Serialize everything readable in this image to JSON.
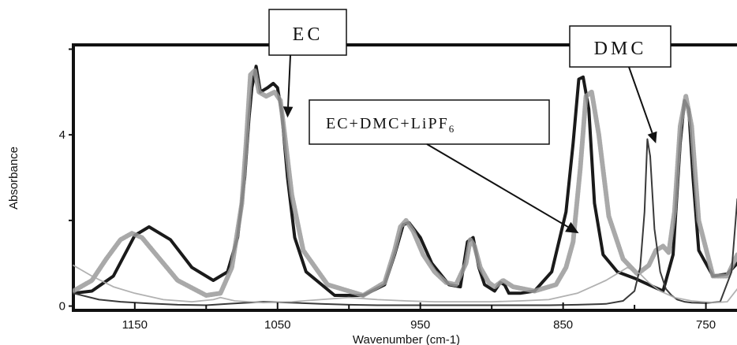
{
  "chart_data": {
    "type": "line",
    "xlabel": "Wavenumber (cm-1)",
    "ylabel": "Absorbance",
    "xlim": [
      1193,
      726
    ],
    "ylim": [
      -0.1,
      6.1
    ],
    "x_ticks": [
      {
        "value": 1150,
        "label": "1150"
      },
      {
        "value": 1050,
        "label": "1050"
      },
      {
        "value": 950,
        "label": "950"
      },
      {
        "value": 850,
        "label": "850"
      },
      {
        "value": 750,
        "label": "750"
      }
    ],
    "x_minor_ticks": [
      1100,
      1000,
      900,
      800
    ],
    "y_ticks": [
      {
        "value": 0,
        "label": "0"
      },
      {
        "value": 2,
        "label": ""
      },
      {
        "value": 4,
        "label": "4"
      },
      {
        "value": 6,
        "label": ""
      }
    ],
    "annotations": {
      "ec": {
        "text": "EC",
        "target_x": 1043,
        "target_y": 4.4
      },
      "dmc": {
        "text": "DMC",
        "target_x": 785,
        "target_y": 3.8
      },
      "mix": {
        "text_main": "EC+DMC+LiPF",
        "text_sub": "6",
        "target_x": 839,
        "target_y": 1.7
      }
    },
    "series": [
      {
        "style": "thick-dark",
        "color": "#1a1a1a",
        "x": [
          1193,
          1180,
          1165,
          1150,
          1140,
          1125,
          1110,
          1095,
          1085,
          1078,
          1073,
          1070,
          1068,
          1065,
          1062,
          1057,
          1053,
          1050,
          1047,
          1043,
          1038,
          1030,
          1010,
          990,
          975,
          968,
          962,
          958,
          950,
          942,
          930,
          922,
          917,
          913,
          909,
          905,
          898,
          894,
          891,
          888,
          880,
          870,
          858,
          848,
          843,
          839,
          836,
          832,
          828,
          822,
          812,
          800,
          790,
          780,
          773,
          768,
          765,
          762,
          759,
          755,
          745,
          735,
          728,
          726
        ],
        "y": [
          0.3,
          0.35,
          0.7,
          1.65,
          1.85,
          1.55,
          0.9,
          0.6,
          0.8,
          1.6,
          3.0,
          4.4,
          5.1,
          5.6,
          5.0,
          5.1,
          5.2,
          5.1,
          4.5,
          3.0,
          1.6,
          0.8,
          0.25,
          0.25,
          0.5,
          1.2,
          1.9,
          1.95,
          1.6,
          1.0,
          0.5,
          0.45,
          1.5,
          1.6,
          0.9,
          0.5,
          0.35,
          0.55,
          0.5,
          0.3,
          0.3,
          0.35,
          0.8,
          2.2,
          3.8,
          5.3,
          5.35,
          4.6,
          2.4,
          1.2,
          0.8,
          0.65,
          0.5,
          0.35,
          1.2,
          3.8,
          4.8,
          4.6,
          3.0,
          1.3,
          0.7,
          0.75,
          1.0,
          0.9
        ]
      },
      {
        "style": "thick-gray",
        "color": "#9a9a9a",
        "x": [
          1193,
          1180,
          1170,
          1160,
          1152,
          1145,
          1135,
          1120,
          1100,
          1090,
          1082,
          1075,
          1072,
          1069,
          1066,
          1063,
          1058,
          1052,
          1048,
          1045,
          1040,
          1032,
          1015,
          990,
          975,
          968,
          964,
          960,
          955,
          948,
          940,
          932,
          925,
          918,
          915,
          912,
          908,
          902,
          898,
          892,
          885,
          870,
          855,
          848,
          843,
          838,
          834,
          830,
          825,
          818,
          808,
          798,
          790,
          785,
          780,
          776,
          772,
          768,
          764,
          760,
          755,
          745,
          735,
          728,
          726
        ],
        "y": [
          0.35,
          0.6,
          1.1,
          1.55,
          1.7,
          1.6,
          1.2,
          0.6,
          0.25,
          0.3,
          0.9,
          2.4,
          3.8,
          5.4,
          5.5,
          5.0,
          4.9,
          5.0,
          4.8,
          4.0,
          2.6,
          1.3,
          0.5,
          0.25,
          0.55,
          1.3,
          1.85,
          2.0,
          1.75,
          1.2,
          0.8,
          0.55,
          0.5,
          1.0,
          1.55,
          1.4,
          0.9,
          0.55,
          0.45,
          0.6,
          0.45,
          0.35,
          0.5,
          0.9,
          1.5,
          3.2,
          4.9,
          5.0,
          4.0,
          2.1,
          1.1,
          0.75,
          0.95,
          1.3,
          1.4,
          1.25,
          2.2,
          4.2,
          4.9,
          4.2,
          2.0,
          0.7,
          0.7,
          1.2,
          1.0
        ]
      },
      {
        "style": "thin-dark",
        "color": "#3a3a3a",
        "x": [
          1193,
          1175,
          1160,
          1140,
          1120,
          1100,
          1085,
          1060,
          1040,
          1020,
          1000,
          980,
          960,
          940,
          920,
          900,
          880,
          860,
          840,
          820,
          808,
          800,
          796,
          793,
          791,
          789,
          786,
          782,
          778,
          774,
          770,
          765,
          760,
          750,
          740,
          732,
          728,
          726
        ],
        "y": [
          0.3,
          0.15,
          0.1,
          0.06,
          0.03,
          0.02,
          0.05,
          0.1,
          0.08,
          0.05,
          0.03,
          0.02,
          0.02,
          0.02,
          0.02,
          0.02,
          0.02,
          0.02,
          0.03,
          0.05,
          0.12,
          0.35,
          0.9,
          2.2,
          3.9,
          3.5,
          1.8,
          0.8,
          0.4,
          0.25,
          0.15,
          0.1,
          0.08,
          0.07,
          0.1,
          0.8,
          2.5,
          2.6
        ]
      },
      {
        "style": "thin-gray",
        "color": "#a8a8a8",
        "x": [
          1193,
          1180,
          1165,
          1150,
          1130,
          1110,
          1095,
          1090,
          1080,
          1060,
          1040,
          1020,
          1000,
          980,
          960,
          940,
          920,
          900,
          880,
          860,
          840,
          820,
          805,
          796,
          790,
          782,
          772,
          760,
          745,
          735,
          728,
          726
        ],
        "y": [
          0.95,
          0.7,
          0.45,
          0.3,
          0.15,
          0.1,
          0.15,
          0.2,
          0.12,
          0.08,
          0.1,
          0.15,
          0.2,
          0.15,
          0.12,
          0.1,
          0.1,
          0.1,
          0.12,
          0.15,
          0.3,
          0.6,
          0.9,
          0.75,
          0.55,
          0.35,
          0.2,
          0.12,
          0.08,
          0.1,
          0.4,
          0.5
        ]
      }
    ]
  }
}
